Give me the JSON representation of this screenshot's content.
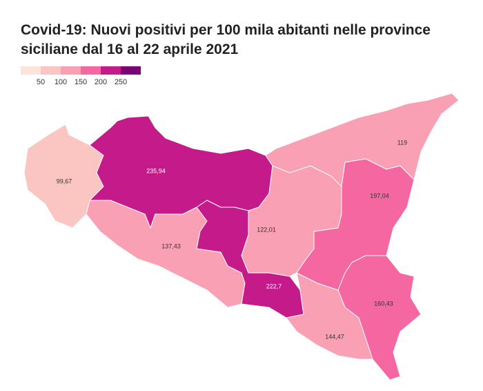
{
  "title": "Covid-19: Nuovi positivi per 100 mila abitanti nelle province siciliane dal 16 al 22 aprile  2021",
  "legend": {
    "breaks": [
      50,
      100,
      150,
      200,
      250
    ],
    "colors": [
      "#fde3da",
      "#fbc5c1",
      "#f9a0b5",
      "#f467a0",
      "#c51b8a",
      "#7a0177"
    ]
  },
  "regions": [
    {
      "value": 99.67,
      "value_label": "99,67"
    },
    {
      "value": 235.94,
      "value_label": "235,94"
    },
    {
      "value": 137.43,
      "value_label": "137,43"
    },
    {
      "value": 222.7,
      "value_label": "222,7"
    },
    {
      "value": 122.01,
      "value_label": "122,01"
    },
    {
      "value": 119,
      "value_label": "119"
    },
    {
      "value": 197.04,
      "value_label": "197,04"
    },
    {
      "value": 160.43,
      "value_label": "160,43"
    },
    {
      "value": 144.47,
      "value_label": "144,47"
    }
  ]
}
